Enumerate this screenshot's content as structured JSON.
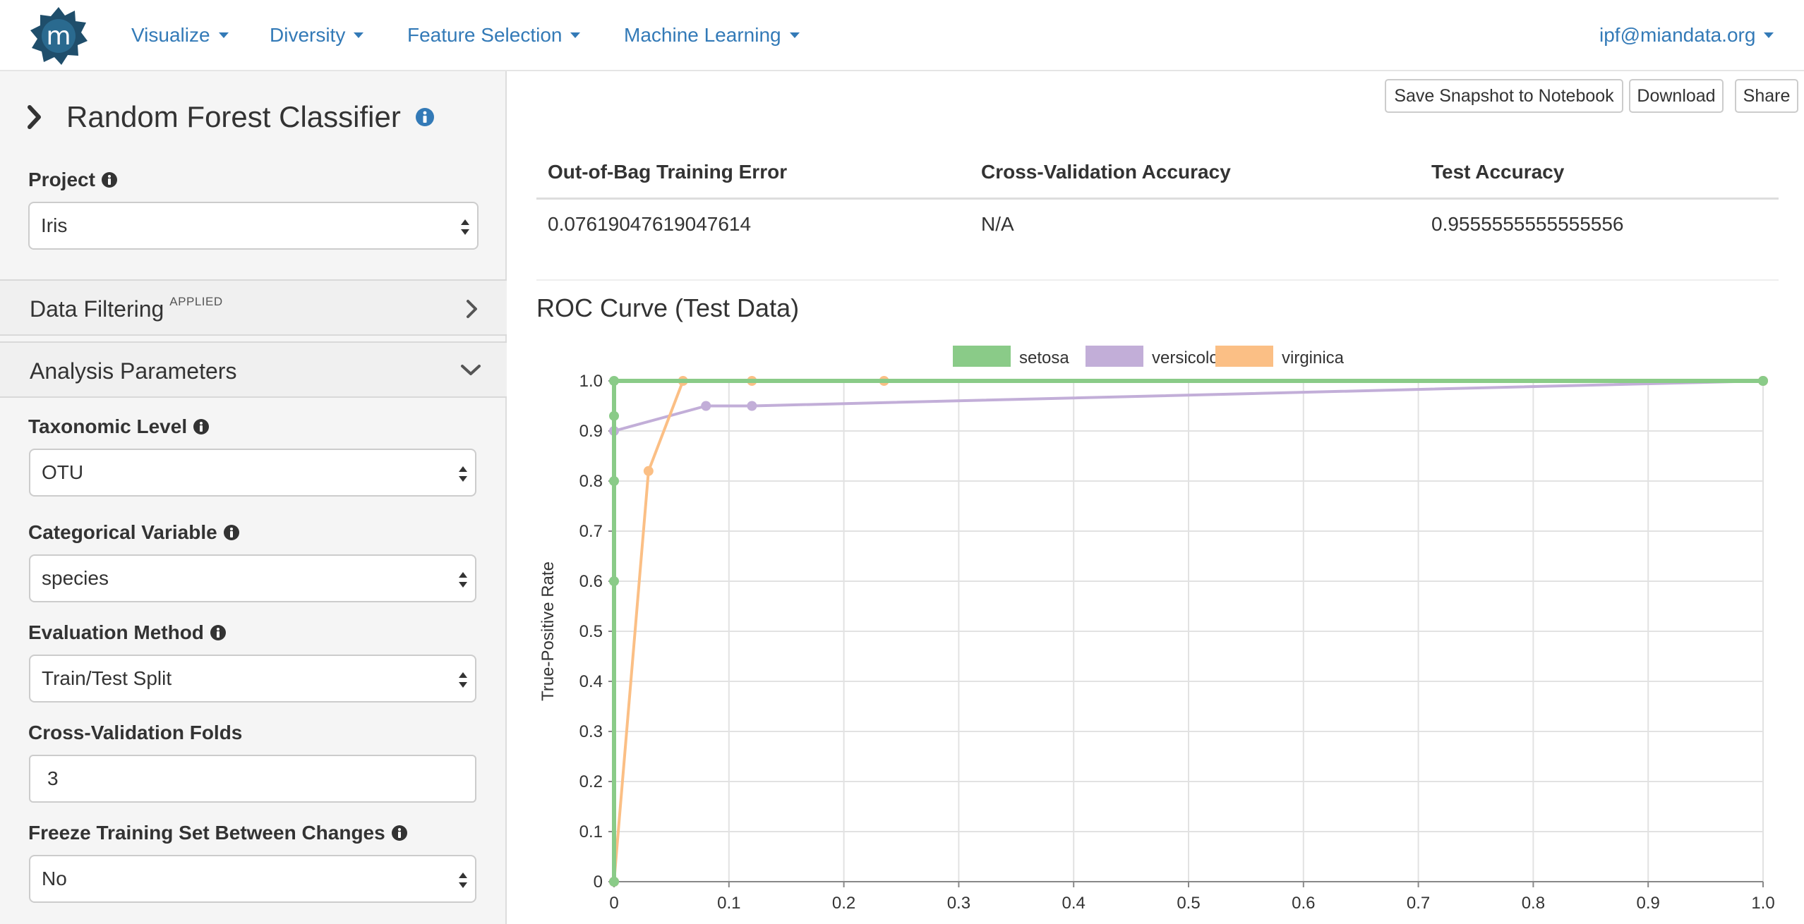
{
  "navbar": {
    "logo_letter": "m",
    "menus": [
      {
        "label": "Visualize"
      },
      {
        "label": "Diversity"
      },
      {
        "label": "Feature Selection"
      },
      {
        "label": "Machine Learning"
      }
    ],
    "user_email": "ipf@miandata.org"
  },
  "sidebar": {
    "title": "Random Forest Classifier",
    "project": {
      "label": "Project",
      "value": "Iris"
    },
    "data_filtering": {
      "label": "Data Filtering",
      "badge": "APPLIED"
    },
    "analysis_parameters": {
      "label": "Analysis Parameters"
    },
    "taxonomic_level": {
      "label": "Taxonomic Level",
      "value": "OTU"
    },
    "categorical_variable": {
      "label": "Categorical Variable",
      "value": "species"
    },
    "evaluation_method": {
      "label": "Evaluation Method",
      "value": "Train/Test Split"
    },
    "cv_folds": {
      "label": "Cross-Validation Folds",
      "value": "3"
    },
    "freeze_training": {
      "label": "Freeze Training Set Between Changes",
      "value": "No"
    }
  },
  "toolbar": {
    "save_snapshot": "Save Snapshot to Notebook",
    "download": "Download",
    "share": "Share"
  },
  "results": {
    "headers": [
      "Out-of-Bag Training Error",
      "Cross-Validation Accuracy",
      "Test Accuracy"
    ],
    "values": [
      "0.07619047619047614",
      "N/A",
      "0.9555555555555556"
    ]
  },
  "chart_data": {
    "type": "line",
    "title": "ROC Curve (Test Data)",
    "ylabel": "True-Positive Rate",
    "xlabel": "",
    "xlim": [
      0,
      1
    ],
    "ylim": [
      0,
      1
    ],
    "x_ticks": [
      "0",
      "0.1",
      "0.2",
      "0.3",
      "0.4",
      "0.5",
      "0.6",
      "0.7",
      "0.8",
      "0.9",
      "1.0"
    ],
    "y_ticks": [
      "0",
      "0.1",
      "0.2",
      "0.3",
      "0.4",
      "0.5",
      "0.6",
      "0.7",
      "0.8",
      "0.9",
      "1.0"
    ],
    "grid": true,
    "legend_position": "top",
    "series": [
      {
        "name": "setosa",
        "color": "#8acb88",
        "x": [
          0,
          0,
          0,
          0,
          0,
          1
        ],
        "y": [
          0,
          0.6,
          0.8,
          0.93,
          1.0,
          1.0
        ]
      },
      {
        "name": "versicolor",
        "color": "#c2aed8",
        "x": [
          0,
          0,
          0.08,
          0.12,
          1
        ],
        "y": [
          0,
          0.9,
          0.95,
          0.95,
          1.0
        ]
      },
      {
        "name": "virginica",
        "color": "#fbbf85",
        "x": [
          0,
          0.03,
          0.06,
          0.12,
          0.235,
          1
        ],
        "y": [
          0,
          0.82,
          1.0,
          1.0,
          1.0,
          1.0
        ]
      }
    ]
  }
}
